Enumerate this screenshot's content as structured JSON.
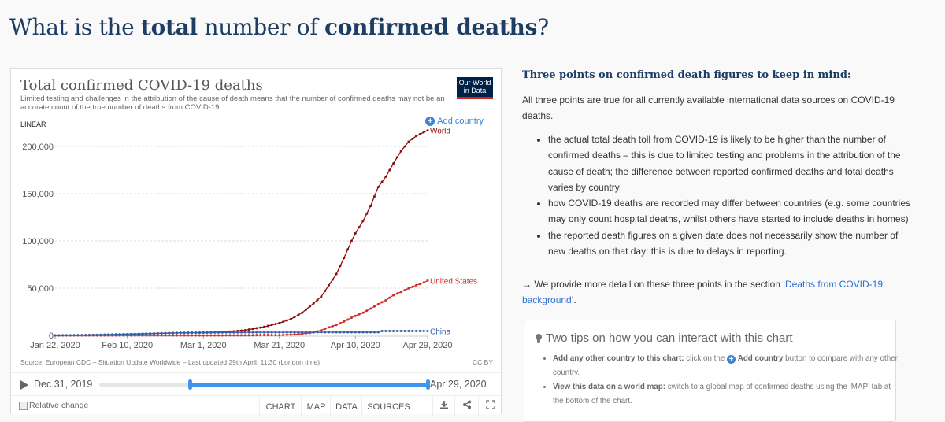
{
  "page": {
    "title_parts": [
      "What is the ",
      "total",
      " number of ",
      "confirmed deaths",
      "?"
    ]
  },
  "chart_card": {
    "title": "Total confirmed COVID-19 deaths",
    "subtitle": "Limited testing and challenges in the attribution of the cause of death means that the number of confirmed deaths may not be an accurate count of the true number of deaths from COVID-19.",
    "logo_line1": "Our World",
    "logo_line2": "in Data",
    "scale_label": "LINEAR",
    "add_country_label": "Add country",
    "source": "Source: European CDC – Situation Update Worldwide – Last updated 29th April, 11:30 (London time)",
    "license": "CC BY",
    "timeline": {
      "start_label": "Dec 31, 2019",
      "end_label": "Apr 29, 2020",
      "range_start_fraction": 0.275,
      "range_end_fraction": 1.0
    },
    "relative_change_label": "Relative change",
    "tabs": [
      "CHART",
      "MAP",
      "DATA",
      "SOURCES"
    ],
    "action_icons": [
      "download-icon",
      "share-icon",
      "fullscreen-icon"
    ]
  },
  "chart_data": {
    "type": "line",
    "title": "Total confirmed COVID-19 deaths",
    "xlabel": "",
    "ylabel": "",
    "x_tick_labels": [
      "Jan 22, 2020",
      "Feb 10, 2020",
      "Mar 1, 2020",
      "Mar 21, 2020",
      "Apr 10, 2020",
      "Apr 29, 2020"
    ],
    "x_tick_days": [
      0,
      19,
      39,
      59,
      79,
      98
    ],
    "y_ticks": [
      0,
      50000,
      100000,
      150000,
      200000
    ],
    "y_tick_labels": [
      "0",
      "50,000",
      "100,000",
      "150,000",
      "200,000"
    ],
    "ylim": [
      0,
      215000
    ],
    "grid": true,
    "series": [
      {
        "name": "World",
        "color": "#8b0f0f",
        "x_days": [
          0,
          5,
          10,
          15,
          20,
          25,
          30,
          35,
          39,
          45,
          50,
          55,
          59,
          62,
          65,
          68,
          70,
          72,
          74,
          76,
          78,
          79,
          81,
          83,
          85,
          87,
          89,
          91,
          93,
          95,
          97,
          98
        ],
        "values": [
          17,
          132,
          425,
          910,
          1370,
          1770,
          2460,
          2800,
          2980,
          3600,
          5400,
          9000,
          13000,
          17200,
          24000,
          34000,
          41000,
          53000,
          65000,
          82000,
          100000,
          108000,
          121000,
          137000,
          157000,
          168000,
          182000,
          195000,
          205000,
          211000,
          215000,
          217000
        ]
      },
      {
        "name": "United States",
        "color": "#d42b2b",
        "x_days": [
          0,
          20,
          39,
          50,
          55,
          59,
          63,
          66,
          68,
          70,
          72,
          74,
          76,
          78,
          79,
          81,
          83,
          85,
          87,
          89,
          91,
          93,
          95,
          97,
          98
        ],
        "values": [
          0,
          0,
          1,
          100,
          400,
          300,
          900,
          2200,
          3100,
          5400,
          8500,
          11000,
          14700,
          18700,
          20600,
          24000,
          28300,
          33000,
          37200,
          42500,
          46000,
          49800,
          53000,
          56000,
          58000
        ]
      },
      {
        "name": "China",
        "color": "#3360a9",
        "x_days": [
          0,
          10,
          20,
          30,
          35,
          39,
          45,
          50,
          59,
          70,
          80,
          85,
          86,
          90,
          98
        ],
        "values": [
          17,
          360,
          1400,
          2500,
          2800,
          2870,
          3100,
          3200,
          3250,
          3300,
          3340,
          3342,
          4632,
          4632,
          4633
        ]
      }
    ]
  },
  "side": {
    "heading": "Three points on confirmed death figures to keep in mind:",
    "intro": "All three points are true for all currently available international data sources on COVID-19 deaths.",
    "bullets": [
      "the actual total death toll from COVID-19 is likely to be higher than the number of confirmed deaths – this is due to limited testing and problems in the attribution of the cause of death; the difference between reported confirmed deaths and total deaths varies by country",
      "how COVID-19 deaths are recorded may differ between countries (e.g. some countries may only count hospital deaths, whilst others have started to include deaths in homes)",
      "the reported death figures on a given date does not necessarily show the number of new deaths on that day: this is due to delays in reporting."
    ],
    "more_prefix": "→ We provide more detail on these three points in the section ‘",
    "more_link": "Deaths from COVID-19: background",
    "more_suffix": "’."
  },
  "tips": {
    "title": "Two tips on how you can interact with this chart",
    "tip1_bold": "Add any other country to this chart:",
    "tip1_pre": " click on the ",
    "tip1_link": "Add country",
    "tip1_post": " button to compare with any other country.",
    "tip2_bold": "View this data on a world map:",
    "tip2_text": " switch to a global map of confirmed deaths using the ‘MAP’ tab at the bottom of the chart."
  }
}
